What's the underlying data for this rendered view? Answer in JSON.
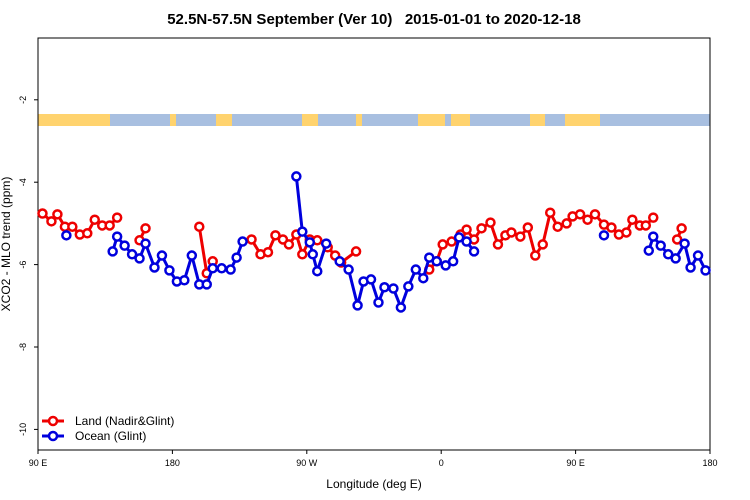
{
  "chart_data": {
    "type": "line",
    "title": "52.5N-57.5N September (Ver 10)   2015-01-01 to 2020-12-18",
    "x_label": "Longitude (deg E)",
    "y_label": "XCO2 - MLO trend (ppm)",
    "xlim": [
      90,
      540
    ],
    "xticks": [
      {
        "value": 90,
        "label": "90 E"
      },
      {
        "value": 180,
        "label": "180"
      },
      {
        "value": 270,
        "label": "90 W"
      },
      {
        "value": 360,
        "label": "0"
      },
      {
        "value": 450,
        "label": "90 E"
      },
      {
        "value": 540,
        "label": "180"
      }
    ],
    "ylim": [
      -10.5,
      -0.5
    ],
    "yticks": [
      -2,
      -4,
      -6,
      -8,
      -10
    ],
    "legend": "bottom-left",
    "series": [
      {
        "name": "Land (Nadir&Glint)",
        "color": "#ee0000",
        "x": [
          93,
          99,
          103,
          108,
          113,
          118,
          123,
          128,
          133,
          138,
          143,
          null,
          158,
          162,
          null,
          198,
          203,
          207,
          null,
          233,
          239,
          244,
          249,
          254,
          258,
          263,
          267,
          272,
          277,
          284,
          289,
          293,
          303,
          null,
          352,
          357,
          361,
          367,
          373,
          377,
          382,
          387,
          393,
          398,
          403,
          407,
          413,
          418,
          423,
          428,
          433,
          438,
          444,
          448,
          453,
          458,
          463,
          469,
          474,
          479,
          484,
          488,
          493,
          497,
          502,
          null,
          518,
          521
        ],
        "values": [
          -4.76,
          -4.95,
          -4.78,
          -5.08,
          -5.08,
          -5.27,
          -5.24,
          -4.91,
          -5.05,
          -5.05,
          -4.86,
          null,
          -5.41,
          -5.12,
          null,
          -5.08,
          -6.21,
          -5.92,
          null,
          -5.39,
          -5.75,
          -5.7,
          -5.29,
          -5.39,
          -5.51,
          -5.27,
          -5.75,
          -5.39,
          -5.41,
          -5.58,
          -5.78,
          -5.95,
          -5.68,
          null,
          -6.12,
          -5.92,
          -5.51,
          -5.44,
          -5.27,
          -5.15,
          -5.39,
          -5.12,
          -4.98,
          -5.51,
          -5.29,
          -5.22,
          -5.32,
          -5.1,
          -5.78,
          -5.51,
          -4.74,
          -5.08,
          -5.0,
          -4.83,
          -4.78,
          -4.91,
          -4.78,
          -5.03,
          -5.1,
          -5.27,
          -5.22,
          -4.91,
          -5.05,
          -5.05,
          -4.86,
          null,
          -5.39,
          -5.12
        ]
      },
      {
        "name": "Ocean (Glint)",
        "color": "#0000dd",
        "x": [
          109,
          null,
          140,
          143,
          148,
          153,
          158,
          162,
          168,
          173,
          178,
          183,
          188,
          193,
          198,
          203,
          207,
          213,
          219,
          223,
          227,
          null,
          263,
          267,
          272,
          274,
          277,
          283,
          null,
          292,
          298,
          304,
          308,
          313,
          318,
          322,
          328,
          333,
          338,
          343,
          348,
          352,
          357,
          363,
          368,
          372,
          377,
          382,
          null,
          469,
          null,
          499,
          502,
          507,
          512,
          517,
          523,
          527,
          532,
          537
        ],
        "values": [
          -5.29,
          null,
          -5.68,
          -5.32,
          -5.54,
          -5.75,
          -5.85,
          -5.49,
          -6.07,
          -5.78,
          -6.14,
          -6.41,
          -6.38,
          -5.78,
          -6.48,
          -6.48,
          -6.09,
          -6.09,
          -6.12,
          -5.83,
          -5.44,
          null,
          -3.86,
          -5.2,
          -5.46,
          -5.75,
          -6.16,
          -5.49,
          null,
          -5.92,
          -6.12,
          -6.99,
          -6.41,
          -6.36,
          -6.92,
          -6.55,
          -6.58,
          -7.04,
          -6.53,
          -6.12,
          -6.33,
          -5.83,
          -5.92,
          -6.02,
          -5.92,
          -5.34,
          -5.44,
          -5.68,
          null,
          -5.29,
          null,
          -5.66,
          -5.32,
          -5.54,
          -5.75,
          -5.85,
          -5.49,
          -6.07,
          -5.78,
          -6.14
        ]
      }
    ]
  }
}
